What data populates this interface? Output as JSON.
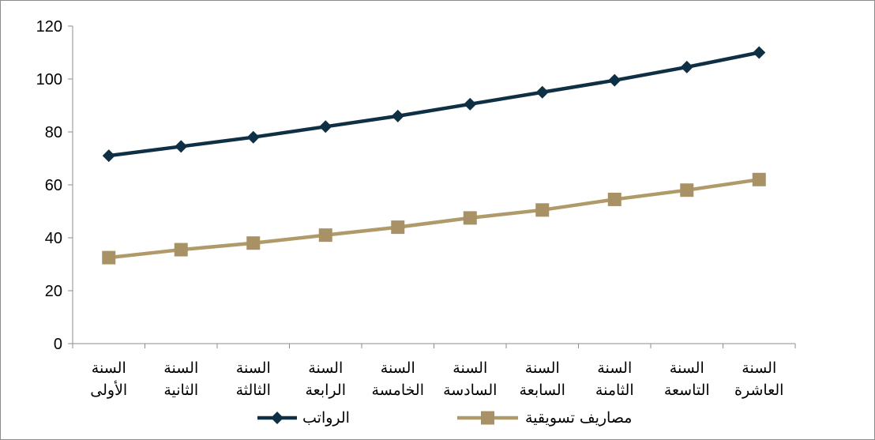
{
  "chart_data": {
    "type": "line",
    "categories": [
      [
        "السنة",
        "الأولى"
      ],
      [
        "السنة",
        "الثانية"
      ],
      [
        "السنة",
        "الثالثة"
      ],
      [
        "السنة",
        "الرابعة"
      ],
      [
        "السنة",
        "الخامسة"
      ],
      [
        "السنة",
        "السادسة"
      ],
      [
        "السنة",
        "السابعة"
      ],
      [
        "السنة",
        "الثامنة"
      ],
      [
        "السنة",
        "التاسعة"
      ],
      [
        "السنة",
        "العاشرة"
      ]
    ],
    "series": [
      {
        "name": "الرواتب",
        "marker": "diamond",
        "color": "#0e2f44",
        "values": [
          71,
          74.5,
          78,
          82,
          86,
          90.5,
          95,
          99.5,
          104.5,
          110
        ]
      },
      {
        "name": "مصاريف تسويقية",
        "marker": "square",
        "color": "#b09a6a",
        "markerColor": "#a89265",
        "values": [
          32.5,
          35.5,
          38,
          41,
          44,
          47.5,
          50.5,
          54.5,
          58,
          62
        ]
      }
    ],
    "yticks": [
      0,
      20,
      40,
      60,
      80,
      100,
      120
    ],
    "ylim": [
      0,
      120
    ],
    "title": "",
    "xlabel": "",
    "ylabel": "",
    "grid": false,
    "legend": "bottom"
  }
}
